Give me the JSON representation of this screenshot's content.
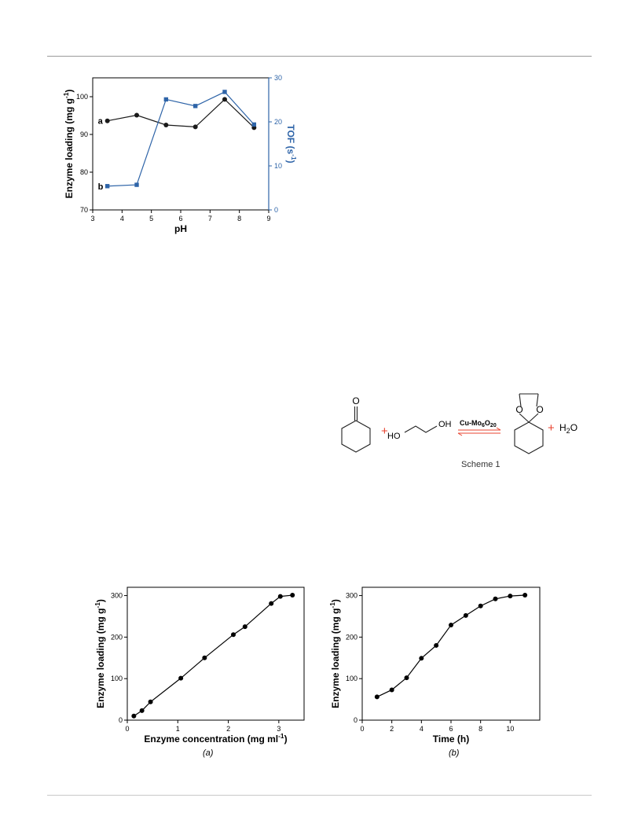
{
  "chart_data": [
    {
      "type": "line",
      "title": "",
      "xlabel": "pH",
      "ylabel": "Enzyme loading (mg g-1)",
      "y2label": "TOF (s-1)",
      "xlim": [
        3,
        9
      ],
      "ylim": [
        70,
        105
      ],
      "y2lim": [
        0,
        30
      ],
      "xticks": [
        3,
        4,
        5,
        6,
        7,
        8,
        9
      ],
      "yticks": [
        70,
        80,
        90,
        100
      ],
      "y2ticks": [
        0,
        10,
        20,
        30
      ],
      "series": [
        {
          "name": "a",
          "axis": "left",
          "marker": "circle",
          "color": "#1a1a1a",
          "x": [
            3.5,
            4.5,
            5.5,
            6.5,
            7.5,
            8.5
          ],
          "values": [
            93.6,
            95.1,
            92.5,
            92.0,
            99.3,
            91.8
          ]
        },
        {
          "name": "b",
          "axis": "right",
          "marker": "square",
          "color": "#2e64a8",
          "x": [
            3.5,
            4.5,
            5.5,
            6.5,
            7.5,
            8.5
          ],
          "values": [
            5.4,
            5.7,
            25.1,
            23.6,
            26.8,
            19.4
          ]
        }
      ]
    },
    {
      "type": "line",
      "title": "",
      "xlabel": "Enzyme concentration (mg ml-1)",
      "ylabel": "Enzyme loading (mg g-1)",
      "xlim": [
        0,
        3.5
      ],
      "ylim": [
        0,
        320
      ],
      "xticks": [
        0,
        1,
        2,
        3
      ],
      "yticks": [
        0,
        100,
        200,
        300
      ],
      "caption": "(a)",
      "series": [
        {
          "marker": "circle",
          "color": "#000000",
          "x": [
            0.13,
            0.29,
            0.46,
            1.06,
            1.53,
            2.1,
            2.33,
            2.85,
            3.03,
            3.27
          ],
          "values": [
            10,
            23,
            44,
            101,
            150,
            206,
            225,
            281,
            298,
            301
          ]
        }
      ]
    },
    {
      "type": "line",
      "title": "",
      "xlabel": "Time (h)",
      "ylabel": "Enzyme loading (mg g-1)",
      "xlim": [
        0,
        12
      ],
      "ylim": [
        0,
        320
      ],
      "xticks": [
        0,
        2,
        4,
        6,
        8,
        10
      ],
      "yticks": [
        0,
        100,
        200,
        300
      ],
      "caption": "(b)",
      "series": [
        {
          "marker": "circle",
          "color": "#000000",
          "x": [
            1,
            2,
            3,
            4,
            5,
            6,
            7,
            8,
            9,
            10,
            11
          ],
          "values": [
            56,
            73,
            102,
            149,
            180,
            229,
            252,
            275,
            292,
            299,
            301
          ]
        }
      ]
    }
  ],
  "scheme": {
    "caption": "Scheme 1",
    "catalyst": "Cu-Mo6O20",
    "plus": "+",
    "water": "H2O",
    "ketone_o": "O",
    "diol_ho": "HO",
    "diol_oh": "OH",
    "ketal_o": "O",
    "colors": {
      "plus": "#e8432f",
      "arrow": "#e8432f"
    }
  }
}
